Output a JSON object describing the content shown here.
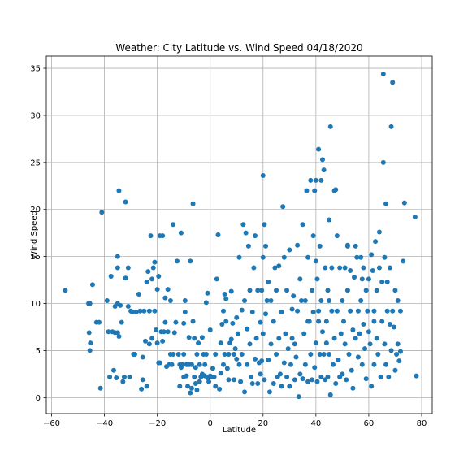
{
  "chart_data": {
    "type": "scatter",
    "title": "Weather:  City Latitude vs. Wind Speed 04/18/2020",
    "xlabel": "Latitude",
    "ylabel": "Wind Speed",
    "xlim": [
      -62,
      84
    ],
    "ylim": [
      -1.7,
      36.3
    ],
    "xticks": [
      -60,
      -40,
      -20,
      0,
      20,
      40,
      60,
      80
    ],
    "yticks": [
      0,
      5,
      10,
      15,
      20,
      25,
      30,
      35
    ],
    "xtick_labels": [
      "−60",
      "−40",
      "−20",
      "0",
      "20",
      "40",
      "60",
      "80"
    ],
    "ytick_labels": [
      "0",
      "5",
      "10",
      "15",
      "20",
      "25",
      "30",
      "35"
    ],
    "grid": true,
    "legend": false,
    "marker_color": "#1f77b4",
    "points": [
      [
        -54.8,
        11.4
      ],
      [
        -46,
        10
      ],
      [
        -45.5,
        10
      ],
      [
        -45.8,
        6.9
      ],
      [
        -45.3,
        5.8
      ],
      [
        -45.5,
        5
      ],
      [
        -44.5,
        12
      ],
      [
        -43,
        8
      ],
      [
        -42,
        8
      ],
      [
        -41.5,
        1
      ],
      [
        -41,
        19.7
      ],
      [
        -39,
        10.3
      ],
      [
        -38.5,
        7
      ],
      [
        -38,
        2.2
      ],
      [
        -37.5,
        12.9
      ],
      [
        -37,
        7
      ],
      [
        -36.5,
        2.9
      ],
      [
        -36,
        9.7
      ],
      [
        -36,
        6.9
      ],
      [
        -35.5,
        2.1
      ],
      [
        -35,
        6.9
      ],
      [
        -35,
        10
      ],
      [
        -35,
        13.8
      ],
      [
        -35,
        15
      ],
      [
        -34.5,
        6.5
      ],
      [
        -34.5,
        22
      ],
      [
        -34,
        9.8
      ],
      [
        -33.5,
        8
      ],
      [
        -33,
        1.7
      ],
      [
        -32.5,
        2.2
      ],
      [
        -32,
        20.8
      ],
      [
        -32,
        12.7
      ],
      [
        -31,
        13.8
      ],
      [
        -31,
        9.7
      ],
      [
        -30.5,
        2.2
      ],
      [
        -30,
        9.2
      ],
      [
        -29.5,
        9.1
      ],
      [
        -29,
        4.6
      ],
      [
        -28.5,
        4.6
      ],
      [
        -28,
        9.1
      ],
      [
        -27,
        11
      ],
      [
        -26.5,
        9.2
      ],
      [
        -26,
        0.9
      ],
      [
        -25.5,
        1.9
      ],
      [
        -25.5,
        4.3
      ],
      [
        -25,
        9.2
      ],
      [
        -24.5,
        6
      ],
      [
        -24,
        12.3
      ],
      [
        -24,
        1.2
      ],
      [
        -23.5,
        13.4
      ],
      [
        -23,
        9.2
      ],
      [
        -23,
        5.7
      ],
      [
        -22.5,
        17.2
      ],
      [
        -22,
        6.3
      ],
      [
        -22,
        12.6
      ],
      [
        -21.5,
        13.8
      ],
      [
        -21,
        14.4
      ],
      [
        -21,
        9.2
      ],
      [
        -20.5,
        7.2
      ],
      [
        -20,
        5.8
      ],
      [
        -20,
        11.5
      ],
      [
        -19.5,
        12.9
      ],
      [
        -19.5,
        3.7
      ],
      [
        -19,
        3.7
      ],
      [
        -19,
        17.2
      ],
      [
        -18.5,
        7
      ],
      [
        -18,
        17.2
      ],
      [
        -18,
        6
      ],
      [
        -17.5,
        7
      ],
      [
        -17,
        8
      ],
      [
        -17,
        10.6
      ],
      [
        -16.5,
        3.3
      ],
      [
        -16,
        7
      ],
      [
        -16,
        11.5
      ],
      [
        -15.5,
        3.5
      ],
      [
        -15,
        4.6
      ],
      [
        -15,
        10.3
      ],
      [
        -14.5,
        3.5
      ],
      [
        -14,
        18.4
      ],
      [
        -14,
        4.6
      ],
      [
        -13.5,
        6.9
      ],
      [
        -13,
        8
      ],
      [
        -12.5,
        14.5
      ],
      [
        -12,
        4.6
      ],
      [
        -11.5,
        3.5
      ],
      [
        -11.5,
        1.2
      ],
      [
        -11,
        3.2
      ],
      [
        -11,
        17.5
      ],
      [
        -10.5,
        3.5
      ],
      [
        -10,
        2.2
      ],
      [
        -10,
        4.6
      ],
      [
        -10,
        7.9
      ],
      [
        -9.5,
        9.1
      ],
      [
        -9.5,
        10.3
      ],
      [
        -9,
        3.5
      ],
      [
        -9,
        2.3
      ],
      [
        -8.5,
        3.5
      ],
      [
        -8.5,
        1.2
      ],
      [
        -8,
        3.5
      ],
      [
        -8,
        6.4
      ],
      [
        -7.5,
        0.5
      ],
      [
        -7.5,
        14.5
      ],
      [
        -7,
        3.5
      ],
      [
        -7,
        1
      ],
      [
        -6.5,
        20.6
      ],
      [
        -6.5,
        8.1
      ],
      [
        -6,
        6.3
      ],
      [
        -6,
        2.2
      ],
      [
        -5.5,
        3.2
      ],
      [
        -5.5,
        1.5
      ],
      [
        -5,
        4.6
      ],
      [
        -5,
        0.8
      ],
      [
        -4.5,
        5.8
      ],
      [
        -4,
        3.5
      ],
      [
        -4,
        1.7
      ],
      [
        -3.5,
        2.2
      ],
      [
        -3,
        2.5
      ],
      [
        -3,
        6.4
      ],
      [
        -2.5,
        4.6
      ],
      [
        -2,
        2.3
      ],
      [
        -2,
        3.5
      ],
      [
        -1.5,
        4.6
      ],
      [
        -1.5,
        10.1
      ],
      [
        -1,
        2.1
      ],
      [
        -1,
        11.1
      ],
      [
        -0.5,
        1.7
      ],
      [
        0,
        2.3
      ],
      [
        0,
        7.2
      ],
      [
        0.5,
        2.2
      ],
      [
        1,
        3.1
      ],
      [
        1.5,
        2.2
      ],
      [
        2,
        4.6
      ],
      [
        2,
        1.2
      ],
      [
        2.5,
        12.6
      ],
      [
        3,
        17.3
      ],
      [
        3.5,
        0.9
      ],
      [
        4,
        2.6
      ],
      [
        4,
        5.8
      ],
      [
        4.5,
        7.8
      ],
      [
        5,
        3.5
      ],
      [
        5,
        9.2
      ],
      [
        5.5,
        4.6
      ],
      [
        5.5,
        11
      ],
      [
        6,
        8.1
      ],
      [
        6,
        10.5
      ],
      [
        6.5,
        3.1
      ],
      [
        7,
        4.6
      ],
      [
        7,
        1.9
      ],
      [
        7.5,
        5.8
      ],
      [
        8,
        11.3
      ],
      [
        8,
        6.2
      ],
      [
        8.5,
        7.9
      ],
      [
        9,
        4.6
      ],
      [
        9,
        1.9
      ],
      [
        9.5,
        5.2
      ],
      [
        10,
        4.1
      ],
      [
        10,
        8.5
      ],
      [
        10.5,
        6.8
      ],
      [
        11,
        3.5
      ],
      [
        11,
        14.9
      ],
      [
        11.5,
        1.7
      ],
      [
        12,
        9.3
      ],
      [
        12,
        4.6
      ],
      [
        12.5,
        18.4
      ],
      [
        13,
        0.6
      ],
      [
        13,
        10.3
      ],
      [
        13.5,
        17.5
      ],
      [
        14,
        3.5
      ],
      [
        14,
        7.3
      ],
      [
        14.5,
        16.1
      ],
      [
        15,
        5.7
      ],
      [
        15,
        11.4
      ],
      [
        15.5,
        2.2
      ],
      [
        16,
        9.1
      ],
      [
        16,
        1.5
      ],
      [
        16.5,
        13.8
      ],
      [
        17,
        4.1
      ],
      [
        17,
        17.2
      ],
      [
        17.5,
        6.3
      ],
      [
        18,
        1.5
      ],
      [
        18,
        11.4
      ],
      [
        18.5,
        3.7
      ],
      [
        19,
        8
      ],
      [
        19,
        2.5
      ],
      [
        19.5,
        3.9
      ],
      [
        19.5,
        11.4
      ],
      [
        20,
        23.6
      ],
      [
        20,
        14.9
      ],
      [
        20,
        6.8
      ],
      [
        20.5,
        1.9
      ],
      [
        20.5,
        18.4
      ],
      [
        21,
        16.1
      ],
      [
        21,
        8.9
      ],
      [
        21.5,
        10.3
      ],
      [
        22,
        4
      ],
      [
        22,
        12.3
      ],
      [
        22.5,
        0.6
      ],
      [
        23,
        5.7
      ],
      [
        23,
        10.3
      ],
      [
        24,
        1.5
      ],
      [
        24,
        8.1
      ],
      [
        24.5,
        13.8
      ],
      [
        25,
        4.6
      ],
      [
        25,
        11.4
      ],
      [
        25.5,
        2.2
      ],
      [
        26,
        6.3
      ],
      [
        26,
        14
      ],
      [
        26.5,
        2.5
      ],
      [
        27,
        9.1
      ],
      [
        27,
        1.2
      ],
      [
        27.5,
        20.3
      ],
      [
        28,
        3.7
      ],
      [
        28,
        14.9
      ],
      [
        28.5,
        6.8
      ],
      [
        29,
        2.2
      ],
      [
        29,
        11.4
      ],
      [
        29.5,
        5.2
      ],
      [
        30,
        1.2
      ],
      [
        30,
        15.7
      ],
      [
        30.5,
        3.5
      ],
      [
        31,
        9.4
      ],
      [
        31,
        6.3
      ],
      [
        31.5,
        10.8
      ],
      [
        32,
        1.9
      ],
      [
        32,
        5.7
      ],
      [
        32.5,
        4.3
      ],
      [
        33,
        9.2
      ],
      [
        33,
        16.2
      ],
      [
        33.5,
        0.1
      ],
      [
        34,
        2.5
      ],
      [
        34,
        12.6
      ],
      [
        34.5,
        10.3
      ],
      [
        35,
        2
      ],
      [
        35,
        18.4
      ],
      [
        35.5,
        6.8
      ],
      [
        36,
        3.5
      ],
      [
        36,
        10.3
      ],
      [
        36.5,
        22
      ],
      [
        37,
        1.7
      ],
      [
        37,
        14.9
      ],
      [
        37.5,
        8.1
      ],
      [
        38,
        4.6
      ],
      [
        38,
        23.1
      ],
      [
        38.5,
        11.4
      ],
      [
        38.5,
        1.9
      ],
      [
        39,
        9.1
      ],
      [
        39,
        17.2
      ],
      [
        39.5,
        22
      ],
      [
        39.5,
        3.2
      ],
      [
        40,
        5.8
      ],
      [
        40,
        14.5
      ],
      [
        40,
        23.1
      ],
      [
        40.5,
        1.7
      ],
      [
        40.5,
        12.6
      ],
      [
        41,
        9.2
      ],
      [
        41,
        26.4
      ],
      [
        41.5,
        4.6
      ],
      [
        41.5,
        16.1
      ],
      [
        42,
        2.2
      ],
      [
        42,
        10.3
      ],
      [
        42,
        23.1
      ],
      [
        42.5,
        7
      ],
      [
        42.5,
        25.3
      ],
      [
        43,
        4.6
      ],
      [
        43,
        24.2
      ],
      [
        43.5,
        1.9
      ],
      [
        43.5,
        13.8
      ],
      [
        44,
        5.8
      ],
      [
        44,
        8.1
      ],
      [
        44.5,
        2.2
      ],
      [
        44.5,
        11.4
      ],
      [
        45,
        18.9
      ],
      [
        45,
        4.6
      ],
      [
        45.5,
        28.8
      ],
      [
        45.5,
        0.3
      ],
      [
        46,
        9.2
      ],
      [
        46,
        13.8
      ],
      [
        46.5,
        3.5
      ],
      [
        47,
        22
      ],
      [
        47,
        6.3
      ],
      [
        47.5,
        1.5
      ],
      [
        47.5,
        22.1
      ],
      [
        48,
        17.2
      ],
      [
        48,
        9.2
      ],
      [
        48.5,
        4
      ],
      [
        49,
        13.8
      ],
      [
        49,
        2.2
      ],
      [
        49.5,
        6.8
      ],
      [
        50,
        10.3
      ],
      [
        50,
        2.5
      ],
      [
        50.5,
        8.1
      ],
      [
        51,
        13.8
      ],
      [
        51,
        5.7
      ],
      [
        51.5,
        1.9
      ],
      [
        52,
        11.4
      ],
      [
        52,
        16.1
      ],
      [
        52.5,
        4.6
      ],
      [
        53,
        9.2
      ],
      [
        53,
        13.5
      ],
      [
        53.5,
        2.9
      ],
      [
        54,
        7.2
      ],
      [
        54,
        1
      ],
      [
        54.5,
        12.8
      ],
      [
        55,
        6.3
      ],
      [
        55,
        16.1
      ],
      [
        55.5,
        14.9
      ],
      [
        56,
        4.3
      ],
      [
        56,
        9.2
      ],
      [
        56.5,
        6.8
      ],
      [
        57,
        10.3
      ],
      [
        57,
        14.9
      ],
      [
        57.5,
        3.5
      ],
      [
        58,
        7.8
      ],
      [
        58,
        13.8
      ],
      [
        58.5,
        5.2
      ],
      [
        59,
        2
      ],
      [
        59,
        11.4
      ],
      [
        59.5,
        9.2
      ],
      [
        60,
        7
      ],
      [
        60,
        12.6
      ],
      [
        60.5,
        5.7
      ],
      [
        61,
        1.2
      ],
      [
        61,
        15.2
      ],
      [
        61.5,
        13.5
      ],
      [
        62,
        3.5
      ],
      [
        62,
        9.2
      ],
      [
        62.5,
        16.6
      ],
      [
        63,
        6.3
      ],
      [
        63,
        11.4
      ],
      [
        63.5,
        4.6
      ],
      [
        64,
        13.8
      ],
      [
        64,
        17.6
      ],
      [
        64.5,
        2.2
      ],
      [
        65,
        8.1
      ],
      [
        65,
        12.3
      ],
      [
        65.5,
        34.4
      ],
      [
        65.5,
        25
      ],
      [
        66,
        14.9
      ],
      [
        66,
        5.7
      ],
      [
        66.5,
        20.6
      ],
      [
        66.5,
        3.5
      ],
      [
        67,
        9.2
      ],
      [
        67,
        12.3
      ],
      [
        67.5,
        2.2
      ],
      [
        68,
        7.8
      ],
      [
        68,
        13.8
      ],
      [
        68.5,
        28.8
      ],
      [
        68.5,
        5
      ],
      [
        69,
        9.2
      ],
      [
        69,
        33.5
      ],
      [
        69.5,
        7.5
      ],
      [
        70,
        2.9
      ],
      [
        70,
        11.4
      ],
      [
        70.5,
        4.6
      ],
      [
        71,
        10.3
      ],
      [
        71,
        5.7
      ],
      [
        71.5,
        3.9
      ],
      [
        72,
        4.9
      ],
      [
        73,
        14.5
      ],
      [
        73.5,
        20.7
      ],
      [
        77.5,
        19.2
      ],
      [
        78,
        2.3
      ],
      [
        72,
        9.2
      ],
      [
        41,
        8.1
      ],
      [
        37,
        8.1
      ],
      [
        52,
        16.2
      ],
      [
        45,
        10.3
      ],
      [
        57.5,
        12.6
      ],
      [
        62,
        8.1
      ]
    ]
  }
}
